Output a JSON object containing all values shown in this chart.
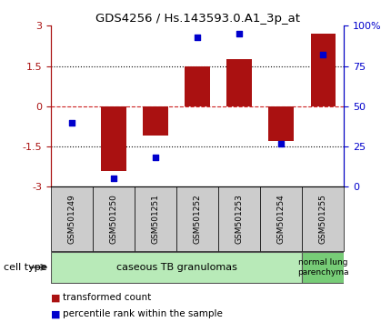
{
  "title": "GDS4256 / Hs.143593.0.A1_3p_at",
  "samples": [
    "GSM501249",
    "GSM501250",
    "GSM501251",
    "GSM501252",
    "GSM501253",
    "GSM501254",
    "GSM501255"
  ],
  "bar_values": [
    0.0,
    -2.4,
    -1.1,
    1.5,
    1.75,
    -1.3,
    2.7
  ],
  "dot_values": [
    40,
    5,
    18,
    93,
    95,
    27,
    82
  ],
  "ylim_left": [
    -3,
    3
  ],
  "yticks_left": [
    -3,
    -1.5,
    0,
    1.5,
    3
  ],
  "ytick_labels_left": [
    "-3",
    "-1.5",
    "0",
    "1.5",
    "3"
  ],
  "yticks_right": [
    0,
    25,
    50,
    75,
    100
  ],
  "ytick_labels_right": [
    "0",
    "25",
    "50",
    "75",
    "100%"
  ],
  "bar_color": "#aa1111",
  "dot_color": "#0000cc",
  "cell_type_label": "cell type",
  "group1_label": "caseous TB granulomas",
  "group2_label": "normal lung\nparenchyma",
  "group1_color": "#b8eab8",
  "group2_color": "#77cc77",
  "group1_samples": [
    0,
    1,
    2,
    3,
    4,
    5
  ],
  "group2_samples": [
    6
  ],
  "legend_bar": "transformed count",
  "legend_dot": "percentile rank within the sample",
  "zero_line_color": "#cc2222",
  "sample_box_color": "#cccccc"
}
